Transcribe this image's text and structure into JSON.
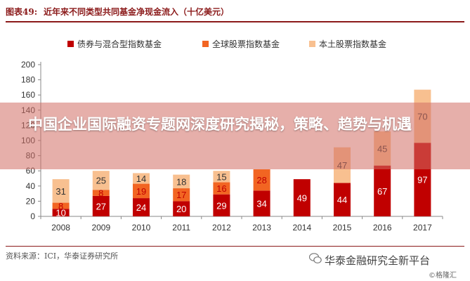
{
  "header": {
    "figure_label": "图表49:",
    "figure_title": "近年来不同类型共同基金净现金流入（十亿美元）"
  },
  "chart_data": {
    "type": "bar",
    "stacked": true,
    "categories": [
      "2008",
      "2009",
      "2010",
      "2011",
      "2012",
      "2013",
      "2014",
      "2015",
      "2016",
      "2017"
    ],
    "series": [
      {
        "name": "债券与混合型指数基金",
        "color": "#c00000",
        "values": [
          10,
          27,
          24,
          20,
          29,
          34,
          49,
          44,
          67,
          97
        ]
      },
      {
        "name": "全球股票指数基金",
        "color": "#f26522",
        "values": [
          8,
          8,
          19,
          17,
          16,
          28,
          null,
          null,
          null,
          null
        ]
      },
      {
        "name": "本土股票指数基金",
        "color": "#f8c090",
        "values": [
          31,
          25,
          14,
          18,
          15,
          null,
          null,
          47,
          45,
          70
        ]
      }
    ],
    "y_ticks": [
      0,
      20,
      40,
      60,
      80,
      100,
      120,
      140,
      160,
      180,
      200
    ],
    "ylim": [
      0,
      200
    ],
    "legend_position": "top"
  },
  "banner": {
    "text": "中国企业国际融资专题网深度研究揭秘，策略、趋势与机遇"
  },
  "footer": {
    "source": "资料来源：ICI，华泰证券研究所",
    "wechat": "华泰金融研究全新平台",
    "watermark": "©格隆汇"
  }
}
